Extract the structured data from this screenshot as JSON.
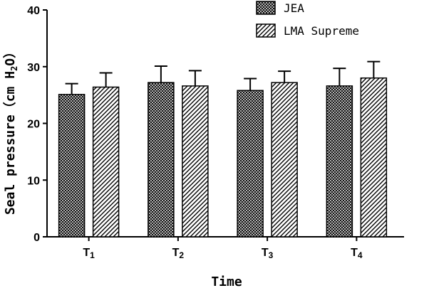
{
  "chart_data": {
    "type": "bar",
    "categories": [
      {
        "base": "T",
        "sub": "1"
      },
      {
        "base": "T",
        "sub": "2"
      },
      {
        "base": "T",
        "sub": "3"
      },
      {
        "base": "T",
        "sub": "4"
      }
    ],
    "series": [
      {
        "name": "JEA",
        "values": [
          25.1,
          27.2,
          25.8,
          26.6
        ],
        "errors": [
          1.9,
          2.9,
          2.1,
          3.1
        ],
        "pattern": "crosshatch"
      },
      {
        "name": "LMA Supreme",
        "values": [
          26.4,
          26.6,
          27.2,
          28.0
        ],
        "errors": [
          2.5,
          2.7,
          2.0,
          2.9
        ],
        "pattern": "diagonal"
      }
    ],
    "xlabel": "Time",
    "ylabel": {
      "main": "Seal pressure（cm H",
      "sub": "2",
      "tail": "O）"
    },
    "ylim": [
      0,
      40
    ],
    "yticks": [
      0,
      10,
      20,
      30,
      40
    ],
    "grid": false,
    "legend_position": "top-right",
    "colors": {
      "bar_stroke": "#000000",
      "pattern_ink": "#000000",
      "background": "#ffffff"
    }
  }
}
